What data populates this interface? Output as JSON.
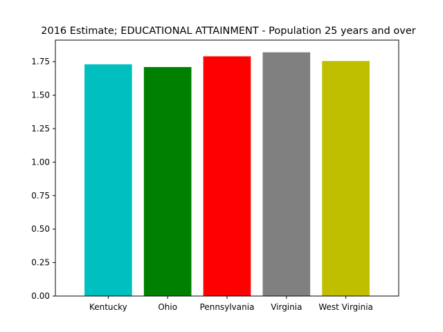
{
  "chart_data": {
    "type": "bar",
    "title": "2016 Estimate; EDUCATIONAL ATTAINMENT - Population 25 years and over",
    "xlabel": "",
    "ylabel": "",
    "categories": [
      "Kentucky",
      "Ohio",
      "Pennsylvania",
      "Virginia",
      "West Virginia"
    ],
    "values": [
      1.73,
      1.71,
      1.79,
      1.82,
      1.755
    ],
    "colors": [
      "#00bfbf",
      "#008000",
      "#ff0000",
      "#808080",
      "#bfbf00"
    ],
    "ylim": [
      0,
      1.911
    ],
    "yticks": [
      0.0,
      0.25,
      0.5,
      0.75,
      1.0,
      1.25,
      1.5,
      1.75
    ],
    "ytick_labels": [
      "0.00",
      "0.25",
      "0.50",
      "0.75",
      "1.00",
      "1.25",
      "1.50",
      "1.75"
    ],
    "grid": false,
    "legend": "none"
  }
}
